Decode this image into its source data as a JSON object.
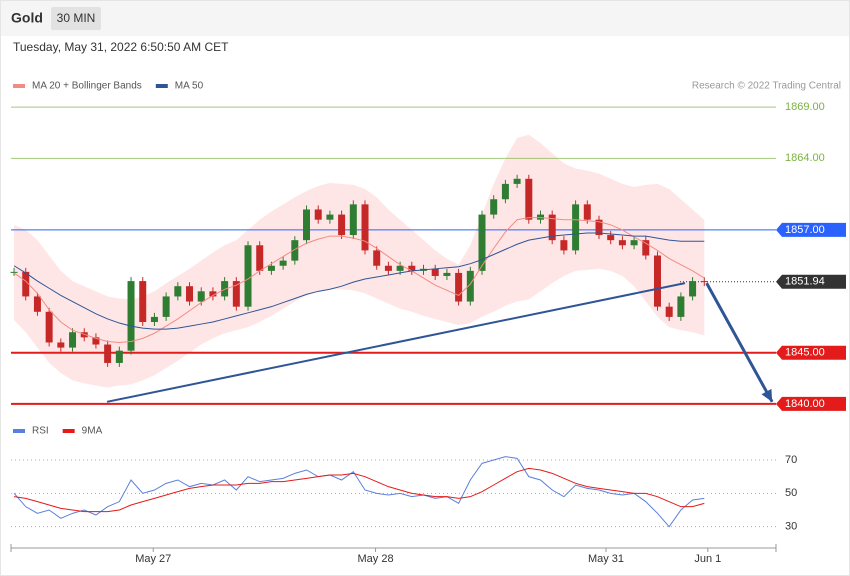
{
  "header": {
    "title": "Gold",
    "interval": "30 MIN",
    "timestamp": "Tuesday, May 31, 2022 6:50:50 AM CET",
    "credit": "Research © 2022 Trading Central"
  },
  "chart_data": [
    {
      "type": "candlestick",
      "xlim": [
        -0.26,
        65.13
      ],
      "ylim": [
        1839.4,
        1869.7
      ],
      "xticks": [
        {
          "value": 11.9,
          "label": "May 27"
        },
        {
          "value": 30.9,
          "label": "May 28"
        },
        {
          "value": 50.6,
          "label": "May 31"
        },
        {
          "value": 59.3,
          "label": "Jun 1"
        }
      ],
      "close": [
        1852.9,
        1850.5,
        1849.0,
        1846.0,
        1845.5,
        1847.0,
        1846.5,
        1845.8,
        1844.0,
        1845.2,
        1852.0,
        1848.0,
        1848.5,
        1850.5,
        1851.5,
        1850.0,
        1851.0,
        1850.5,
        1852.0,
        1849.5,
        1855.5,
        1853.0,
        1853.5,
        1854.0,
        1856.0,
        1859.0,
        1858.0,
        1858.5,
        1856.5,
        1859.5,
        1855.0,
        1853.5,
        1853.0,
        1853.5,
        1853.0,
        1853.2,
        1852.5,
        1852.8,
        1850.0,
        1853.0,
        1858.5,
        1860.0,
        1861.5,
        1862.0,
        1858.0,
        1858.5,
        1856.0,
        1855.0,
        1859.5,
        1858.0,
        1856.5,
        1856.0,
        1855.5,
        1856.0,
        1854.5,
        1849.5,
        1848.5,
        1850.5,
        1852.0,
        1851.9
      ],
      "up_color": "#2e7d32",
      "down_color": "#c62828",
      "series": [
        {
          "name": "MA 20 + Bollinger Bands",
          "color": "#f28b82",
          "band_color": "#ffd6d6",
          "values": [
            1852.8,
            1852.0,
            1850.8,
            1849.2,
            1848.0,
            1847.2,
            1846.8,
            1846.4,
            1846.1,
            1846.0,
            1846.1,
            1846.4,
            1846.9,
            1847.6,
            1848.3,
            1849.1,
            1849.9,
            1850.6,
            1851.2,
            1851.6,
            1852.2,
            1853.0,
            1853.7,
            1854.4,
            1855.1,
            1855.7,
            1856.1,
            1856.4,
            1856.4,
            1856.2,
            1855.9,
            1855.2,
            1854.4,
            1853.6,
            1853.0,
            1852.3,
            1851.6,
            1851.1,
            1850.6,
            1851.7,
            1853.5,
            1855.2,
            1856.8,
            1858.0,
            1858.2,
            1858.2,
            1858.1,
            1858.0,
            1858.0,
            1857.9,
            1857.8,
            1857.5,
            1857.0,
            1856.3,
            1855.7,
            1855.0,
            1854.2,
            1853.6,
            1853.0,
            1852.3
          ],
          "upper": [
            1857.5,
            1857.0,
            1856.0,
            1854.5,
            1853.0,
            1852.0,
            1851.5,
            1851.0,
            1850.5,
            1850.3,
            1850.2,
            1850.5,
            1851.0,
            1851.8,
            1852.5,
            1853.2,
            1854.0,
            1854.8,
            1855.5,
            1856.0,
            1857.0,
            1858.0,
            1858.8,
            1859.5,
            1860.2,
            1860.8,
            1861.3,
            1861.6,
            1861.5,
            1861.4,
            1861.0,
            1860.2,
            1859.0,
            1858.0,
            1857.0,
            1856.0,
            1855.0,
            1854.2,
            1853.6,
            1855.5,
            1858.5,
            1861.5,
            1864.0,
            1866.0,
            1866.3,
            1865.5,
            1864.5,
            1863.5,
            1863.0,
            1862.8,
            1862.5,
            1862.0,
            1861.5,
            1861.2,
            1861.4,
            1861.5,
            1861.0,
            1860.0,
            1859.0,
            1858.0
          ],
          "lower": [
            1848.2,
            1847.0,
            1845.5,
            1844.0,
            1843.0,
            1842.3,
            1842.0,
            1841.8,
            1841.6,
            1841.8,
            1841.9,
            1842.3,
            1842.8,
            1843.5,
            1844.2,
            1845.0,
            1845.8,
            1846.4,
            1846.9,
            1847.2,
            1847.5,
            1848.0,
            1848.6,
            1849.3,
            1850.0,
            1850.6,
            1851.0,
            1851.2,
            1851.2,
            1851.1,
            1850.8,
            1850.3,
            1849.8,
            1849.3,
            1849.0,
            1848.6,
            1848.3,
            1848.0,
            1847.7,
            1847.9,
            1848.5,
            1849.0,
            1849.6,
            1850.0,
            1850.2,
            1851.0,
            1851.8,
            1852.5,
            1853.0,
            1853.1,
            1853.2,
            1853.0,
            1852.5,
            1851.5,
            1850.0,
            1848.5,
            1847.5,
            1847.2,
            1847.0,
            1846.7
          ]
        },
        {
          "name": "MA 50",
          "color": "#2f5597",
          "values": [
            1853.5,
            1852.8,
            1852.0,
            1851.3,
            1850.6,
            1850.0,
            1849.4,
            1848.8,
            1848.3,
            1847.9,
            1847.6,
            1847.4,
            1847.3,
            1847.3,
            1847.4,
            1847.6,
            1847.8,
            1848.0,
            1848.3,
            1848.6,
            1848.9,
            1849.2,
            1849.5,
            1849.9,
            1850.3,
            1850.7,
            1851.0,
            1851.2,
            1851.5,
            1851.9,
            1852.2,
            1852.4,
            1852.6,
            1852.8,
            1853.0,
            1853.1,
            1853.2,
            1853.3,
            1853.4,
            1853.7,
            1854.1,
            1854.6,
            1855.1,
            1855.6,
            1856.0,
            1856.2,
            1856.4,
            1856.5,
            1856.6,
            1856.7,
            1856.7,
            1856.6,
            1856.5,
            1856.4,
            1856.4,
            1856.2,
            1856.0,
            1855.9,
            1855.9,
            1855.9
          ]
        }
      ],
      "levels": [
        {
          "value": 1869,
          "label": "1869.00",
          "color": "#7cb342",
          "style": "text"
        },
        {
          "value": 1864,
          "label": "1864.00",
          "color": "#7cb342",
          "style": "text"
        },
        {
          "value": 1857,
          "label": "1857.00",
          "color": "#2962ff",
          "style": "box"
        },
        {
          "value": 1851.94,
          "color": "#333333",
          "style": "box"
        },
        {
          "value": 1845,
          "label": "1845.00",
          "color": "#e31b1b",
          "style": "box"
        },
        {
          "value": 1840,
          "label": "1840.00",
          "color": "#e31b1b",
          "style": "box"
        }
      ],
      "trendline": {
        "x": [
          7.95,
          57.35
        ],
        "y": [
          1840.2,
          1851.8
        ],
        "color": "#2f5597"
      },
      "arrow": {
        "x": [
          59.2,
          64.8
        ],
        "y": [
          1851.8,
          1840.2
        ],
        "color": "#2f5597"
      }
    },
    {
      "type": "line",
      "xlim": [
        -0.26,
        65.13
      ],
      "ylim": [
        22,
        79
      ],
      "yticks": [
        70,
        50,
        30
      ],
      "series": [
        {
          "name": "RSI",
          "color": "#5b7fdb",
          "values": [
            50,
            42,
            38,
            40,
            35,
            38,
            40,
            37,
            42,
            45,
            58,
            50,
            52,
            56,
            58,
            54,
            56,
            55,
            58,
            52,
            60,
            57,
            58,
            59,
            62,
            64,
            60,
            61,
            58,
            63,
            52,
            50,
            49,
            50,
            48,
            49,
            47,
            48,
            44,
            58,
            68,
            70,
            72,
            71,
            60,
            58,
            52,
            48,
            55,
            53,
            52,
            50,
            49,
            50,
            45,
            38,
            30,
            40,
            46,
            47
          ]
        },
        {
          "name": "9MA",
          "color": "#e31b1b",
          "values": [
            48,
            47,
            45,
            43,
            41,
            40,
            39,
            39,
            39,
            40,
            43,
            45,
            47,
            49,
            51,
            53,
            54,
            55,
            55,
            55,
            56,
            56,
            57,
            57,
            58,
            59,
            60,
            61,
            61,
            62,
            60,
            57,
            54,
            52,
            50,
            49,
            48,
            48,
            47,
            48,
            51,
            55,
            59,
            63,
            65,
            64,
            62,
            59,
            56,
            54,
            53,
            52,
            51,
            50,
            50,
            48,
            45,
            42,
            42,
            44
          ]
        }
      ]
    }
  ]
}
